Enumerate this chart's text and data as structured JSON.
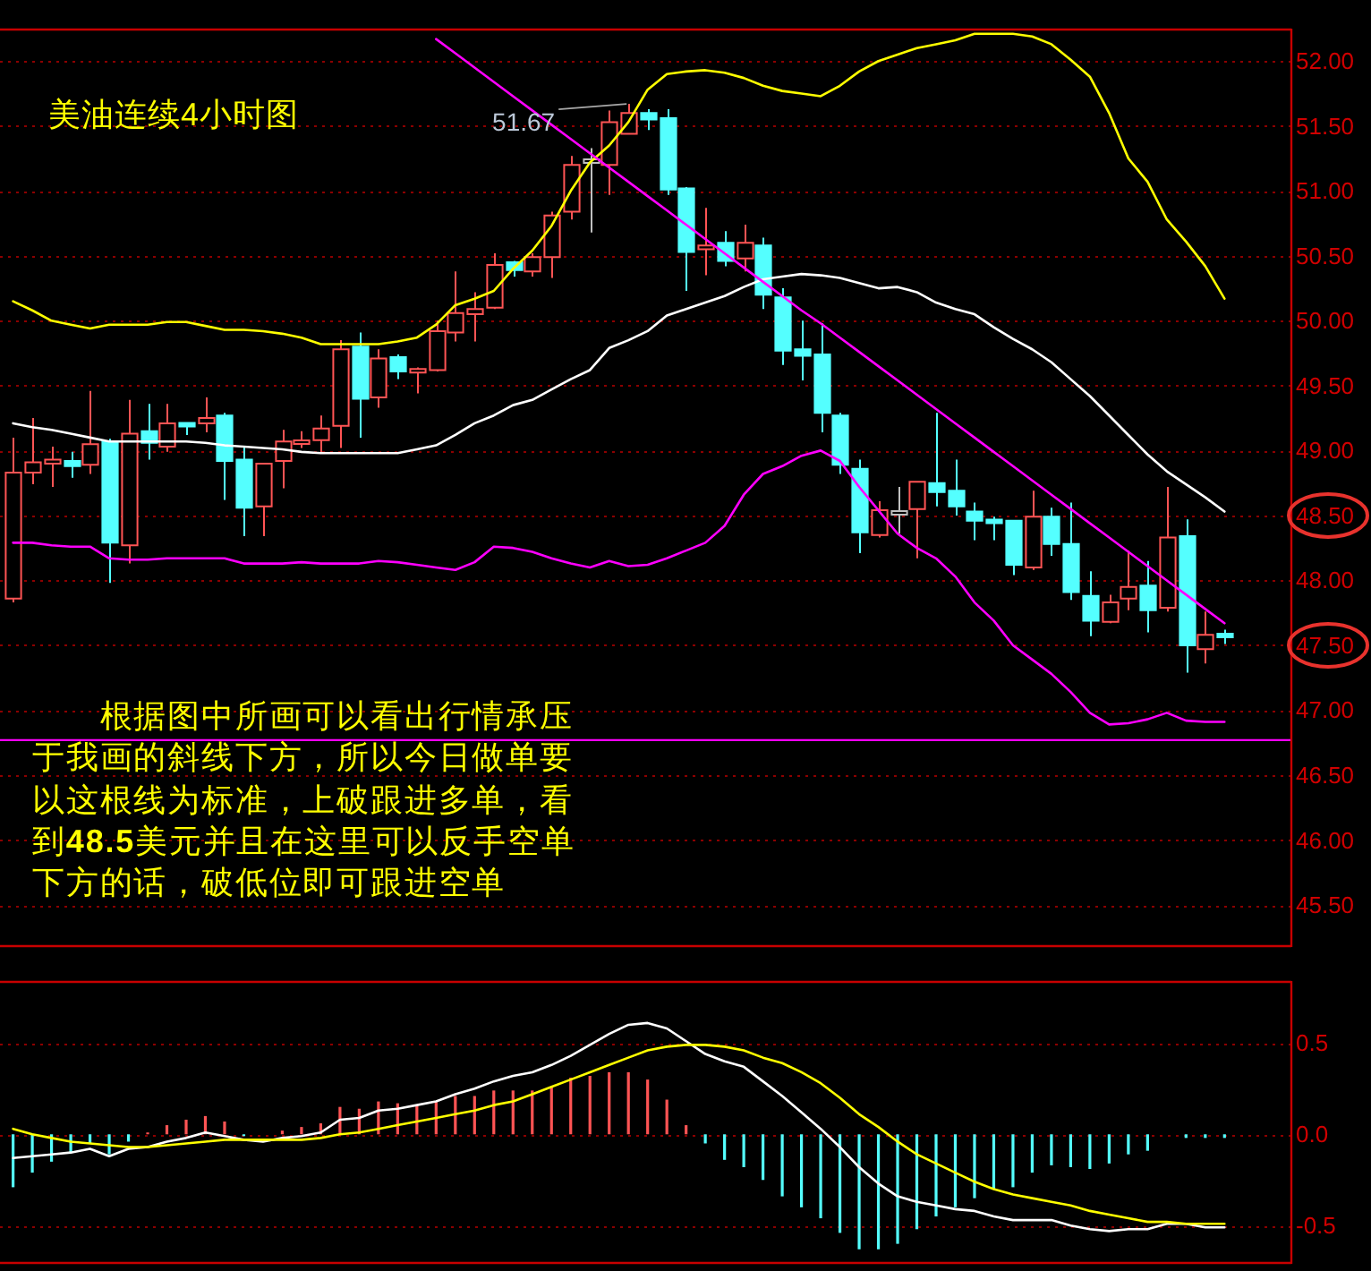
{
  "chart_data": [
    {
      "type": "candlestick",
      "title": "美油连续4小时图",
      "categories": [
        null,
        null,
        null,
        null,
        null,
        null,
        null,
        null,
        null,
        null,
        null,
        null,
        null,
        null,
        null,
        null,
        null,
        null,
        null,
        null,
        null,
        null,
        null,
        null,
        null,
        null,
        null,
        null,
        null,
        null,
        null,
        null,
        null,
        null,
        null,
        null,
        null,
        null,
        null,
        null,
        null,
        null,
        null,
        null,
        null,
        null,
        null,
        null,
        null,
        null,
        null,
        null,
        null,
        null,
        null,
        null,
        null,
        null,
        null,
        null,
        null,
        null,
        null,
        null
      ],
      "ohlc": [
        [
          47.86,
          49.1,
          47.83,
          48.83
        ],
        [
          48.83,
          49.25,
          48.74,
          48.91
        ],
        [
          48.9,
          49.03,
          48.72,
          48.93
        ],
        [
          48.92,
          48.99,
          48.79,
          48.88
        ],
        [
          48.89,
          49.46,
          48.82,
          49.05
        ],
        [
          49.07,
          49.09,
          47.98,
          48.29
        ],
        [
          48.27,
          49.39,
          48.13,
          49.13
        ],
        [
          49.15,
          49.36,
          48.93,
          49.06
        ],
        [
          49.03,
          49.36,
          48.99,
          49.21
        ],
        [
          49.21,
          49.21,
          49.12,
          49.19
        ],
        [
          49.21,
          49.41,
          49.14,
          49.25
        ],
        [
          49.27,
          49.29,
          48.62,
          48.92
        ],
        [
          48.93,
          49.03,
          48.34,
          48.56
        ],
        [
          48.57,
          48.9,
          48.34,
          48.9
        ],
        [
          48.92,
          49.16,
          48.71,
          49.07
        ],
        [
          49.06,
          49.15,
          49.02,
          49.07
        ],
        [
          49.08,
          49.27,
          48.98,
          49.17
        ],
        [
          49.19,
          49.85,
          49.02,
          49.78
        ],
        [
          49.8,
          49.91,
          49.1,
          49.4
        ],
        [
          49.41,
          49.78,
          49.33,
          49.71
        ],
        [
          49.72,
          49.74,
          49.55,
          49.61
        ],
        [
          49.61,
          49.64,
          49.44,
          49.62
        ],
        [
          49.62,
          50.0,
          49.61,
          49.92
        ],
        [
          49.91,
          50.38,
          49.84,
          50.06
        ],
        [
          50.05,
          50.22,
          49.84,
          50.09
        ],
        [
          50.1,
          50.52,
          50.09,
          50.43
        ],
        [
          50.45,
          50.46,
          50.34,
          50.39
        ],
        [
          50.38,
          50.52,
          50.34,
          50.49
        ],
        [
          50.49,
          50.84,
          50.33,
          50.81
        ],
        [
          50.84,
          51.27,
          50.78,
          51.2
        ],
        [
          51.23,
          51.33,
          50.68,
          51.23
        ],
        [
          51.2,
          51.62,
          50.97,
          51.53
        ],
        [
          51.44,
          51.67,
          51.44,
          51.6
        ],
        [
          51.6,
          51.63,
          51.47,
          51.55
        ],
        [
          51.56,
          51.63,
          50.97,
          51.01
        ],
        [
          51.02,
          51.03,
          50.23,
          50.53
        ],
        [
          50.55,
          50.87,
          50.35,
          50.58
        ],
        [
          50.6,
          50.69,
          50.42,
          50.46
        ],
        [
          50.48,
          50.74,
          50.38,
          50.6
        ],
        [
          50.58,
          50.64,
          50.09,
          50.2
        ],
        [
          50.18,
          50.25,
          49.66,
          49.77
        ],
        [
          49.78,
          50.0,
          49.54,
          49.73
        ],
        [
          49.74,
          49.98,
          49.14,
          49.29
        ],
        [
          49.27,
          49.29,
          48.82,
          48.89
        ],
        [
          48.86,
          48.93,
          48.21,
          48.37
        ],
        [
          48.35,
          48.61,
          48.33,
          48.54
        ],
        [
          48.52,
          48.72,
          48.36,
          48.52
        ],
        [
          48.55,
          48.76,
          48.17,
          48.76
        ],
        [
          48.75,
          49.29,
          48.57,
          48.68
        ],
        [
          48.69,
          48.93,
          48.5,
          48.57
        ],
        [
          48.53,
          48.6,
          48.31,
          48.46
        ],
        [
          48.46,
          48.49,
          48.31,
          48.45
        ],
        [
          48.46,
          48.46,
          48.04,
          48.12
        ],
        [
          48.1,
          48.69,
          48.08,
          48.49
        ],
        [
          48.49,
          48.56,
          48.19,
          48.28
        ],
        [
          48.28,
          48.6,
          47.85,
          47.91
        ],
        [
          47.88,
          48.07,
          47.57,
          47.69
        ],
        [
          47.68,
          47.89,
          47.67,
          47.83
        ],
        [
          47.86,
          48.23,
          47.77,
          47.95
        ],
        [
          47.96,
          48.15,
          47.6,
          47.77
        ],
        [
          47.79,
          48.72,
          47.76,
          48.33
        ],
        [
          48.34,
          48.47,
          47.29,
          47.5
        ],
        [
          47.47,
          47.76,
          47.36,
          47.58
        ],
        [
          47.58,
          47.62,
          47.51,
          47.57
        ]
      ],
      "colors": [
        "#ff5454",
        "#ff5454",
        "#ff5454",
        "#54ffff",
        "#ff5454",
        "#54ffff",
        "#ff5454",
        "#54ffff",
        "#ff5454",
        "#54ffff",
        "#ff5454",
        "#54ffff",
        "#54ffff",
        "#ff5454",
        "#ff5454",
        "#ff5454",
        "#ff5454",
        "#ff5454",
        "#54ffff",
        "#ff5454",
        "#54ffff",
        "#ff5454",
        "#ff5454",
        "#ff5454",
        "#ff5454",
        "#ff5454",
        "#54ffff",
        "#ff5454",
        "#ff5454",
        "#ff5454",
        "#c0c0c0",
        "#ff5454",
        "#ff5454",
        "#54ffff",
        "#54ffff",
        "#54ffff",
        "#ff5454",
        "#54ffff",
        "#ff5454",
        "#54ffff",
        "#54ffff",
        "#54ffff",
        "#54ffff",
        "#54ffff",
        "#54ffff",
        "#ff5454",
        "#c0c0c0",
        "#ff5454",
        "#54ffff",
        "#54ffff",
        "#54ffff",
        "#54ffff",
        "#54ffff",
        "#ff5454",
        "#54ffff",
        "#54ffff",
        "#54ffff",
        "#ff5454",
        "#ff5454",
        "#54ffff",
        "#ff5454",
        "#54ffff",
        "#ff5454",
        "#54ffff"
      ],
      "series": [
        {
          "type": "line",
          "color": "#ffff00",
          "values": [
            50.15,
            50.08,
            50.0,
            49.97,
            49.94,
            49.97,
            49.97,
            49.97,
            49.99,
            49.99,
            49.96,
            49.93,
            49.93,
            49.92,
            49.9,
            49.87,
            49.82,
            49.82,
            49.82,
            49.82,
            49.84,
            49.87,
            49.97,
            50.12,
            50.17,
            50.23,
            50.4,
            50.54,
            50.73,
            51.0,
            51.22,
            51.35,
            51.53,
            51.78,
            51.9,
            51.92,
            51.93,
            51.91,
            51.87,
            51.81,
            51.77,
            51.75,
            51.73,
            51.81,
            51.92,
            52.0,
            52.05,
            52.1,
            52.13,
            52.16,
            52.21,
            52.21,
            52.21,
            52.19,
            52.13,
            52.01,
            51.88,
            51.6,
            51.25,
            51.07,
            50.78,
            50.61,
            50.42,
            50.17
          ]
        },
        {
          "type": "line",
          "color": "#ffffff",
          "values": [
            49.21,
            49.18,
            49.16,
            49.13,
            49.1,
            49.07,
            49.07,
            49.07,
            49.07,
            49.07,
            49.06,
            49.04,
            49.03,
            49.02,
            49.01,
            48.99,
            48.98,
            48.98,
            48.98,
            48.98,
            48.98,
            49.01,
            49.04,
            49.12,
            49.21,
            49.27,
            49.35,
            49.39,
            49.47,
            49.55,
            49.62,
            49.79,
            49.85,
            49.92,
            50.04,
            50.09,
            50.14,
            50.19,
            50.26,
            50.32,
            50.34,
            50.36,
            50.35,
            50.33,
            50.29,
            50.25,
            50.26,
            50.22,
            50.14,
            50.09,
            50.05,
            49.95,
            49.86,
            49.78,
            49.68,
            49.55,
            49.42,
            49.27,
            49.12,
            48.97,
            48.84,
            48.74,
            48.64,
            48.53
          ]
        },
        {
          "type": "line",
          "color": "#ff00ff",
          "values": [
            48.29,
            48.29,
            48.27,
            48.26,
            48.26,
            48.17,
            48.16,
            48.16,
            48.17,
            48.17,
            48.17,
            48.17,
            48.13,
            48.13,
            48.13,
            48.14,
            48.13,
            48.13,
            48.13,
            48.15,
            48.14,
            48.12,
            48.1,
            48.08,
            48.14,
            48.26,
            48.25,
            48.22,
            48.17,
            48.13,
            48.1,
            48.15,
            48.11,
            48.12,
            48.17,
            48.23,
            48.29,
            48.42,
            48.66,
            48.82,
            48.88,
            48.96,
            49.0,
            48.92,
            48.72,
            48.54,
            48.36,
            48.25,
            48.17,
            48.03,
            47.83,
            47.69,
            47.5,
            47.39,
            47.28,
            47.14,
            46.98,
            46.89,
            46.9,
            46.93,
            46.98,
            46.92,
            46.91,
            46.91
          ]
        },
        {
          "type": "line",
          "color": "#ff00ff",
          "values": [
            null,
            null,
            null,
            null,
            null,
            null,
            null,
            null,
            null,
            null,
            null,
            null,
            null,
            null,
            null,
            null,
            null,
            null,
            null,
            null,
            null,
            null,
            52.17,
            52.06,
            51.95,
            51.84,
            51.73,
            51.62,
            51.51,
            51.4,
            51.29,
            51.18,
            51.07,
            50.96,
            50.85,
            50.74,
            50.63,
            50.52,
            50.41,
            50.3,
            50.19,
            50.08,
            49.98,
            49.87,
            49.76,
            49.65,
            49.54,
            49.43,
            49.32,
            49.21,
            49.1,
            48.99,
            48.88,
            48.77,
            48.66,
            48.55,
            48.44,
            48.33,
            48.22,
            48.11,
            48.0,
            47.89,
            47.78,
            47.67
          ]
        }
      ],
      "ylim": [
        45.19,
        52.25
      ],
      "yticks": [
        {
          "value": 52,
          "label": "52.00"
        },
        {
          "value": 51.5,
          "label": "51.50"
        },
        {
          "value": 51,
          "label": "51.00"
        },
        {
          "value": 50.5,
          "label": "50.50"
        },
        {
          "value": 50,
          "label": "50.00"
        },
        {
          "value": 49.5,
          "label": "49.50"
        },
        {
          "value": 49,
          "label": "49.00"
        },
        {
          "value": 48.5,
          "label": "48.50"
        },
        {
          "value": 48,
          "label": "48.00"
        },
        {
          "value": 47.5,
          "label": "47.50"
        },
        {
          "value": 47,
          "label": "47.00"
        },
        {
          "value": 46.5,
          "label": "46.50"
        },
        {
          "value": 46,
          "label": "46.00"
        },
        {
          "value": 45.5,
          "label": "45.50"
        }
      ],
      "grid": "y",
      "tick_labels": "y",
      "ref_lines": [
        {
          "axis": "y",
          "value": 46.77,
          "color": "#ff00ff"
        }
      ],
      "annotations": [
        "51.67",
        "根据图中所画可以看出行情承压于我画的斜线下方，所以今日做单要以这根线为标准，上破跟进多单，看到**48.5**美元并且在这里可以反手空单下方的话，破低位即可跟进空单"
      ]
    },
    {
      "type": "bar",
      "categories": [
        null,
        null,
        null,
        null,
        null,
        null,
        null,
        null,
        null,
        null,
        null,
        null,
        null,
        null,
        null,
        null,
        null,
        null,
        null,
        null,
        null,
        null,
        null,
        null,
        null,
        null,
        null,
        null,
        null,
        null,
        null,
        null,
        null,
        null,
        null,
        null,
        null,
        null,
        null,
        null,
        null,
        null,
        null,
        null,
        null,
        null,
        null,
        null,
        null,
        null,
        null,
        null,
        null,
        null,
        null,
        null,
        null,
        null,
        null,
        null,
        null,
        null,
        null,
        null
      ],
      "series": [
        {
          "type": "bar",
          "values": [
            -0.29,
            -0.21,
            -0.15,
            -0.1,
            -0.05,
            -0.11,
            -0.04,
            0.01,
            0.05,
            0.08,
            0.1,
            0.07,
            -0.01,
            null,
            0.02,
            0.04,
            0.06,
            0.15,
            0.14,
            0.18,
            0.17,
            0.16,
            0.18,
            0.21,
            0.21,
            0.24,
            0.24,
            0.24,
            0.26,
            0.31,
            0.32,
            0.34,
            0.34,
            0.3,
            0.19,
            0.05,
            -0.05,
            -0.14,
            -0.18,
            -0.25,
            -0.34,
            -0.4,
            -0.46,
            -0.54,
            -0.63,
            -0.63,
            -0.6,
            -0.52,
            -0.45,
            -0.4,
            -0.35,
            -0.3,
            -0.29,
            -0.21,
            -0.17,
            -0.18,
            -0.19,
            -0.16,
            -0.11,
            -0.09,
            null,
            -0.02,
            -0.02,
            -0.02
          ],
          "colors": [
            "#54ffff",
            "#54ffff",
            "#54ffff",
            "#54ffff",
            "#54ffff",
            "#54ffff",
            "#54ffff",
            "#ff5454",
            "#ff5454",
            "#ff5454",
            "#ff5454",
            "#ff5454",
            "#54ffff",
            null,
            "#ff5454",
            "#ff5454",
            "#ff5454",
            "#ff5454",
            "#ff5454",
            "#ff5454",
            "#ff5454",
            "#ff5454",
            "#ff5454",
            "#ff5454",
            "#ff5454",
            "#ff5454",
            "#ff5454",
            "#ff5454",
            "#ff5454",
            "#ff5454",
            "#ff5454",
            "#ff5454",
            "#ff5454",
            "#ff5454",
            "#ff5454",
            "#ff5454",
            "#54ffff",
            "#54ffff",
            "#54ffff",
            "#54ffff",
            "#54ffff",
            "#54ffff",
            "#54ffff",
            "#54ffff",
            "#54ffff",
            "#54ffff",
            "#54ffff",
            "#54ffff",
            "#54ffff",
            "#54ffff",
            "#54ffff",
            "#54ffff",
            "#54ffff",
            "#54ffff",
            "#54ffff",
            "#54ffff",
            "#54ffff",
            "#54ffff",
            "#54ffff",
            "#54ffff",
            null,
            "#54ffff",
            "#54ffff",
            "#54ffff"
          ]
        },
        {
          "type": "line",
          "color": "#ffffff",
          "values": [
            -0.13,
            -0.12,
            -0.11,
            -0.1,
            -0.08,
            -0.12,
            -0.08,
            -0.07,
            -0.04,
            -0.02,
            0.01,
            -0.01,
            -0.03,
            -0.04,
            -0.02,
            -0.01,
            0.01,
            0.08,
            0.09,
            0.13,
            0.14,
            0.16,
            0.18,
            0.22,
            0.25,
            0.29,
            0.32,
            0.34,
            0.38,
            0.43,
            0.49,
            0.55,
            0.6,
            0.61,
            0.58,
            0.51,
            0.44,
            0.4,
            0.37,
            0.29,
            0.21,
            0.12,
            0.03,
            -0.07,
            -0.18,
            -0.27,
            -0.34,
            -0.37,
            -0.39,
            -0.41,
            -0.42,
            -0.45,
            -0.47,
            -0.47,
            -0.47,
            -0.5,
            -0.52,
            -0.53,
            -0.52,
            -0.52,
            -0.49,
            -0.49,
            -0.51,
            -0.51
          ]
        },
        {
          "type": "line",
          "color": "#ffff00",
          "values": [
            0.03,
            0.0,
            -0.02,
            -0.04,
            -0.05,
            -0.06,
            -0.07,
            -0.07,
            -0.06,
            -0.05,
            -0.04,
            -0.03,
            -0.03,
            -0.03,
            -0.03,
            -0.03,
            -0.02,
            0.0,
            0.01,
            0.03,
            0.05,
            0.07,
            0.09,
            0.11,
            0.13,
            0.16,
            0.18,
            0.22,
            0.26,
            0.3,
            0.34,
            0.38,
            0.42,
            0.46,
            0.48,
            0.49,
            0.49,
            0.48,
            0.46,
            0.42,
            0.39,
            0.34,
            0.28,
            0.2,
            0.11,
            0.04,
            -0.04,
            -0.11,
            -0.16,
            -0.21,
            -0.26,
            -0.3,
            -0.33,
            -0.35,
            -0.37,
            -0.39,
            -0.42,
            -0.44,
            -0.46,
            -0.48,
            -0.48,
            -0.49,
            -0.49,
            -0.49
          ]
        }
      ],
      "ylim": [
        -0.7,
        0.84
      ],
      "yticks": [
        {
          "value": 0.5,
          "label": "0.5"
        },
        {
          "value": 0,
          "label": "0.0"
        },
        {
          "value": -0.5,
          "label": "-0.5"
        }
      ],
      "grid": "y",
      "tick_labels": "y"
    }
  ]
}
